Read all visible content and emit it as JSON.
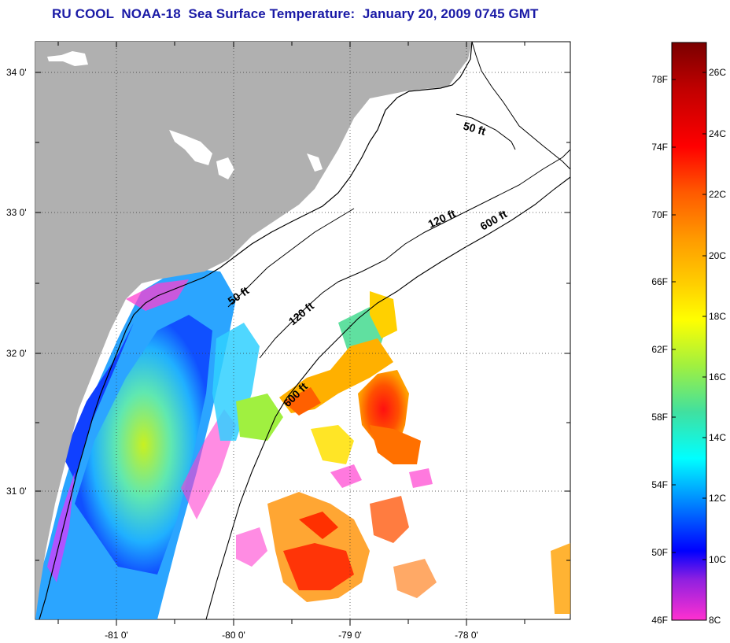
{
  "title": "RU COOL  NOAA-18  Sea Surface Temperature:  January 20, 2009 0745 GMT",
  "map": {
    "lat_labels": [
      "34 0'",
      "33 0'",
      "32 0'",
      "31 0'"
    ],
    "lon_labels": [
      "-81 0'",
      "-80 0'",
      "-79 0'",
      "-78 0'"
    ],
    "isobath_labels": [
      {
        "text": "50 ft",
        "name": "isobath-50ft-north"
      },
      {
        "text": "50 ft",
        "name": "isobath-50ft-south"
      },
      {
        "text": "120 ft",
        "name": "isobath-120ft-north"
      },
      {
        "text": "120 ft",
        "name": "isobath-120ft-south"
      },
      {
        "text": "600 ft",
        "name": "isobath-600ft-north"
      },
      {
        "text": "600 ft",
        "name": "isobath-600ft-south"
      }
    ],
    "colors": {
      "land": "#b0b0b0",
      "cloud_no_data": "#ffffff",
      "lines": "#000000",
      "grid": "#333333"
    }
  },
  "colorbar": {
    "fahrenheit_labels": [
      "78F",
      "74F",
      "70F",
      "66F",
      "62F",
      "58F",
      "54F",
      "50F",
      "46F"
    ],
    "celsius_labels": [
      "26C",
      "24C",
      "22C",
      "20C",
      "18C",
      "16C",
      "14C",
      "12C",
      "10C",
      "8C"
    ],
    "gradient_stops": [
      "#7a0000",
      "#c00000",
      "#ff0000",
      "#ff5a00",
      "#ff9a00",
      "#ffd000",
      "#ffff00",
      "#a0f040",
      "#40e0a0",
      "#00ffff",
      "#0080ff",
      "#0000ff",
      "#9020e0",
      "#ff30d0"
    ]
  }
}
